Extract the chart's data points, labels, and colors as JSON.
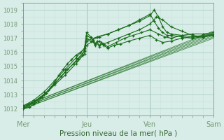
{
  "xlabel": "Pression niveau de la mer( hPa )",
  "bg_color": "#d8ede8",
  "grid_color": "#aaccc4",
  "grid_minor_color": "#c8e0da",
  "line_color": "#1a6b1a",
  "ylim": [
    1011.5,
    1019.5
  ],
  "xlim": [
    0,
    90
  ],
  "yticks": [
    1012,
    1013,
    1014,
    1015,
    1016,
    1017,
    1018,
    1019
  ],
  "xtick_positions": [
    0,
    30,
    60,
    90
  ],
  "xtick_labels": [
    "Mer",
    "Jeu",
    "Ven",
    "Sam"
  ],
  "vlines": [
    0,
    30,
    60,
    90
  ],
  "smooth_lines": [
    {
      "x": [
        0,
        90
      ],
      "y": [
        1012.0,
        1017.0
      ]
    },
    {
      "x": [
        0,
        90
      ],
      "y": [
        1012.0,
        1017.1
      ]
    },
    {
      "x": [
        0,
        90
      ],
      "y": [
        1012.1,
        1017.2
      ]
    },
    {
      "x": [
        0,
        90
      ],
      "y": [
        1012.1,
        1017.3
      ]
    },
    {
      "x": [
        0,
        90
      ],
      "y": [
        1012.2,
        1017.4
      ]
    },
    {
      "x": [
        0,
        90
      ],
      "y": [
        1012.2,
        1017.5
      ]
    }
  ],
  "marker_lines": [
    {
      "x": [
        0,
        3,
        5,
        7,
        9,
        11,
        13,
        15,
        17,
        19,
        21,
        23,
        25,
        27,
        29,
        30,
        32,
        34,
        35,
        36,
        37,
        38,
        40,
        43,
        46,
        50,
        55,
        60,
        63,
        66,
        70,
        75,
        80,
        85,
        90
      ],
      "y": [
        1012.0,
        1012.1,
        1012.3,
        1012.5,
        1012.8,
        1013.1,
        1013.5,
        1013.9,
        1014.4,
        1014.8,
        1015.2,
        1015.5,
        1015.8,
        1016.0,
        1016.2,
        1017.4,
        1017.1,
        1016.5,
        1016.8,
        1016.4,
        1016.7,
        1016.5,
        1016.3,
        1016.5,
        1016.6,
        1016.8,
        1017.0,
        1017.2,
        1016.9,
        1016.7,
        1016.8,
        1017.0,
        1017.1,
        1017.2,
        1017.3
      ]
    },
    {
      "x": [
        0,
        4,
        8,
        12,
        15,
        18,
        21,
        24,
        26,
        28,
        30,
        33,
        36,
        38,
        40,
        44,
        48,
        52,
        56,
        60,
        64,
        67,
        70,
        75,
        80,
        85,
        90
      ],
      "y": [
        1012.1,
        1012.4,
        1012.8,
        1013.3,
        1013.8,
        1014.3,
        1014.8,
        1015.2,
        1015.5,
        1015.8,
        1016.5,
        1016.8,
        1016.5,
        1016.6,
        1016.4,
        1016.7,
        1017.0,
        1017.2,
        1017.4,
        1017.6,
        1017.3,
        1017.1,
        1017.0,
        1017.2,
        1017.3,
        1017.3,
        1017.4
      ]
    },
    {
      "x": [
        0,
        5,
        10,
        15,
        20,
        25,
        29,
        30,
        32,
        34,
        36,
        38,
        40,
        45,
        50,
        55,
        60,
        63,
        66,
        70,
        75,
        80,
        85,
        90
      ],
      "y": [
        1012.1,
        1012.5,
        1013.0,
        1013.7,
        1014.4,
        1015.2,
        1015.9,
        1017.0,
        1016.8,
        1016.6,
        1016.8,
        1016.6,
        1016.7,
        1017.0,
        1017.3,
        1017.6,
        1018.0,
        1018.5,
        1018.3,
        1017.8,
        1017.5,
        1017.2,
        1017.1,
        1017.2
      ]
    },
    {
      "x": [
        0,
        5,
        10,
        15,
        20,
        25,
        29,
        30,
        33,
        36,
        40,
        45,
        50,
        55,
        60,
        62,
        64,
        66,
        68,
        70,
        75,
        80,
        85,
        90
      ],
      "y": [
        1012.2,
        1012.6,
        1013.2,
        1014.0,
        1014.8,
        1015.6,
        1016.3,
        1017.2,
        1016.9,
        1017.1,
        1017.3,
        1017.6,
        1017.9,
        1018.2,
        1018.6,
        1019.0,
        1018.5,
        1017.8,
        1017.4,
        1017.3,
        1017.2,
        1017.1,
        1017.1,
        1017.3
      ]
    },
    {
      "x": [
        0,
        5,
        10,
        15,
        20,
        25,
        29,
        30,
        35,
        40,
        45,
        50,
        55,
        60,
        62,
        64,
        66,
        68,
        70,
        75,
        80,
        85,
        90
      ],
      "y": [
        1012.0,
        1012.4,
        1013.0,
        1013.8,
        1014.6,
        1015.4,
        1016.1,
        1016.8,
        1017.1,
        1017.3,
        1017.6,
        1017.9,
        1018.3,
        1018.7,
        1018.2,
        1017.7,
        1017.4,
        1017.2,
        1017.2,
        1017.1,
        1017.0,
        1017.1,
        1017.2
      ]
    }
  ]
}
